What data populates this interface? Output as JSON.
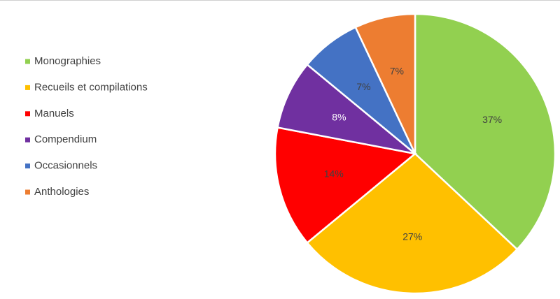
{
  "chart_data": {
    "type": "pie",
    "categories": [
      "Monographies",
      "Recueils et compilations",
      "Manuels",
      "Compendium",
      "Occasionnels",
      "Anthologies"
    ],
    "values": [
      37,
      27,
      14,
      8,
      7,
      7
    ],
    "value_labels": [
      "37%",
      "27%",
      "14%",
      "8%",
      "7%",
      "7%"
    ],
    "colors": [
      "#92d050",
      "#ffc000",
      "#ff0000",
      "#7030a0",
      "#4472c4",
      "#ed7d31"
    ],
    "legend": "left"
  }
}
